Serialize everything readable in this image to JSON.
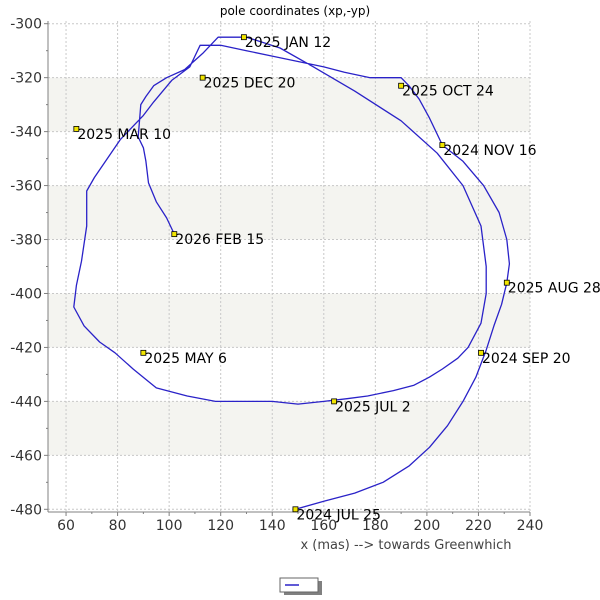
{
  "chart_data": {
    "type": "line",
    "title": "pole coordinates (xp,-yp)",
    "xlabel": "x (mas) --> towards Greenwhich",
    "ylabel": "",
    "xlim": [
      53,
      240
    ],
    "ylim": [
      -481,
      -299
    ],
    "xticks": [
      60,
      80,
      100,
      120,
      140,
      160,
      180,
      200,
      220,
      240
    ],
    "yticks": [
      -300,
      -320,
      -340,
      -360,
      -380,
      -400,
      -420,
      -440,
      -460,
      -480
    ],
    "grid": true,
    "legend": "bottom-center",
    "colors": {
      "line": "#2a22c8",
      "band_light": "#f4f4f0",
      "band_dark": "#ffffff",
      "grid": "#c8c8c8",
      "marker_fill": "#f2e600",
      "marker_stroke": "#000000"
    },
    "series": [
      {
        "name": "",
        "x": [
          149,
          160,
          172,
          183,
          193,
          201,
          208,
          214,
          219,
          223,
          226,
          229,
          231,
          232,
          231,
          228,
          222,
          214,
          206,
          201,
          197,
          193,
          190,
          178,
          168,
          160,
          150,
          140,
          130,
          120,
          112,
          108,
          101,
          94,
          90,
          86,
          81,
          76,
          71,
          68,
          68,
          66,
          64,
          63,
          67,
          73,
          79,
          86,
          95,
          107,
          118,
          129,
          140,
          150,
          160,
          169,
          177,
          187,
          195,
          201,
          206,
          212,
          216,
          221,
          223,
          223,
          221,
          214,
          204,
          190,
          172,
          156,
          143,
          130,
          119,
          113,
          106,
          99,
          94,
          91,
          89,
          88,
          90,
          91,
          92,
          95,
          99,
          102
        ],
        "y": [
          -480,
          -477,
          -474,
          -470,
          -464,
          -457,
          -449,
          -440,
          -431,
          -421,
          -412,
          -404,
          -396,
          -389,
          -380,
          -370,
          -360,
          -351,
          -345,
          -335,
          -328,
          -323,
          -320,
          -320,
          -318,
          -316,
          -314,
          -312,
          -310,
          -308,
          -308,
          -316,
          -321,
          -329,
          -334,
          -338,
          -343,
          -350,
          -357,
          -362,
          -375,
          -388,
          -397,
          -405,
          -412,
          -418,
          -422,
          -428,
          -435,
          -438,
          -440,
          -440,
          -440,
          -441,
          -440,
          -439,
          -438,
          -436,
          -434,
          -431,
          -428,
          -424,
          -420,
          -411,
          -400,
          -390,
          -375,
          -360,
          -348,
          -336,
          -325,
          -316,
          -309,
          -305,
          -305,
          -311,
          -317,
          -320,
          -323,
          -327,
          -330,
          -342,
          -346,
          -351,
          -359,
          -366,
          -372,
          -378
        ]
      }
    ],
    "points": [
      {
        "label": "2024 JUL 25",
        "x": 149,
        "y": -480
      },
      {
        "label": "2024 SEP 20",
        "x": 221,
        "y": -422
      },
      {
        "label": "2025 AUG 28",
        "x": 231,
        "y": -396
      },
      {
        "label": "2024 NOV 16",
        "x": 206,
        "y": -345
      },
      {
        "label": "2025 OCT 24",
        "x": 190,
        "y": -323
      },
      {
        "label": "2025 JAN 12",
        "x": 129,
        "y": -305
      },
      {
        "label": "2025 DEC 20",
        "x": 113,
        "y": -320
      },
      {
        "label": "2025 MAR 10",
        "x": 64,
        "y": -339
      },
      {
        "label": "2026 FEB 15",
        "x": 102,
        "y": -378
      },
      {
        "label": "2025 MAY 6",
        "x": 90,
        "y": -422
      },
      {
        "label": "2025 JUL 2",
        "x": 164,
        "y": -440
      }
    ]
  }
}
